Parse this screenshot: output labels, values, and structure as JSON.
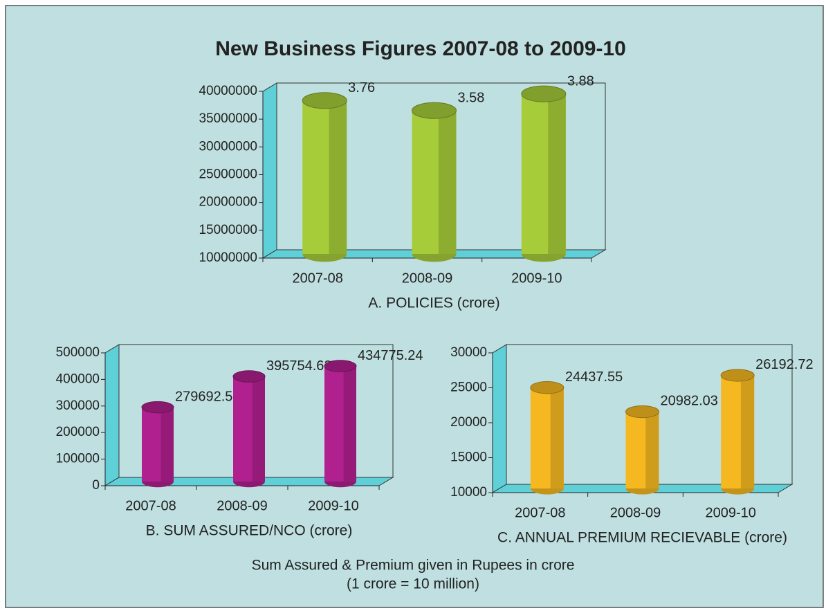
{
  "title": "New Business Figures 2007-08 to 2009-10",
  "chart_data": [
    {
      "type": "bar",
      "xlabel": "A. POLICIES (crore)",
      "categories": [
        "2007-08",
        "2008-09",
        "2009-10"
      ],
      "values": [
        37600000,
        35800000,
        38800000
      ],
      "value_labels": [
        "3.76",
        "3.58",
        "3.88"
      ],
      "color": "#a6cc3a",
      "ylim": [
        10000000,
        40000000
      ],
      "yticks": [
        10000000,
        15000000,
        20000000,
        25000000,
        30000000,
        35000000,
        40000000
      ]
    },
    {
      "type": "bar",
      "xlabel": "B. SUM ASSURED/NCO (crore)",
      "categories": [
        "2007-08",
        "2008-09",
        "2009-10"
      ],
      "values": [
        279692.59,
        395754.62,
        434775.24
      ],
      "color": "#b0208e",
      "ylim": [
        0,
        500000
      ],
      "yticks": [
        0,
        100000,
        200000,
        300000,
        400000,
        500000
      ]
    },
    {
      "type": "bar",
      "xlabel": "C. ANNUAL PREMIUM RECIEVABLE (crore)",
      "categories": [
        "2007-08",
        "2008-09",
        "2009-10"
      ],
      "values": [
        24437.55,
        20982.03,
        26192.72
      ],
      "color": "#f5b820",
      "ylim": [
        10000,
        30000
      ],
      "yticks": [
        10000,
        15000,
        20000,
        25000,
        30000
      ]
    }
  ],
  "footnote": [
    "Sum Assured & Premium given in Rupees in crore",
    "(1 crore = 10 million)"
  ]
}
